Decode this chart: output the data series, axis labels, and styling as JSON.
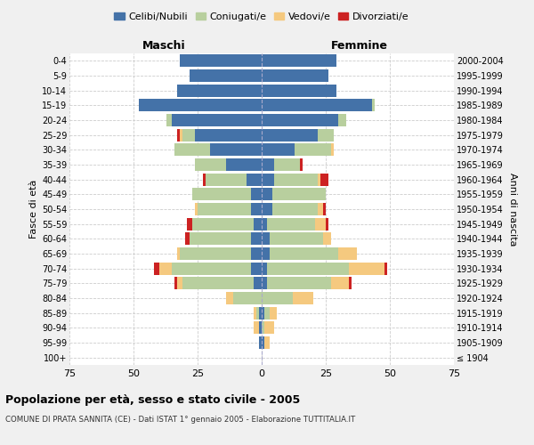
{
  "age_groups": [
    "100+",
    "95-99",
    "90-94",
    "85-89",
    "80-84",
    "75-79",
    "70-74",
    "65-69",
    "60-64",
    "55-59",
    "50-54",
    "45-49",
    "40-44",
    "35-39",
    "30-34",
    "25-29",
    "20-24",
    "15-19",
    "10-14",
    "5-9",
    "0-4"
  ],
  "birth_years": [
    "≤ 1904",
    "1905-1909",
    "1910-1914",
    "1915-1919",
    "1920-1924",
    "1925-1929",
    "1930-1934",
    "1935-1939",
    "1940-1944",
    "1945-1949",
    "1950-1954",
    "1955-1959",
    "1960-1964",
    "1965-1969",
    "1970-1974",
    "1975-1979",
    "1980-1984",
    "1985-1989",
    "1990-1994",
    "1995-1999",
    "2000-2004"
  ],
  "maschi": {
    "celibe": [
      0,
      1,
      1,
      1,
      0,
      3,
      4,
      4,
      4,
      3,
      4,
      4,
      6,
      14,
      20,
      26,
      35,
      48,
      33,
      28,
      32
    ],
    "coniugato": [
      0,
      0,
      0,
      1,
      11,
      28,
      31,
      28,
      24,
      24,
      21,
      23,
      16,
      12,
      14,
      5,
      2,
      0,
      0,
      0,
      0
    ],
    "vedovo": [
      0,
      0,
      2,
      1,
      3,
      2,
      5,
      1,
      0,
      0,
      1,
      0,
      0,
      0,
      0,
      1,
      0,
      0,
      0,
      0,
      0
    ],
    "divorziato": [
      0,
      0,
      0,
      0,
      0,
      1,
      2,
      0,
      2,
      2,
      0,
      0,
      1,
      0,
      0,
      1,
      0,
      0,
      0,
      0,
      0
    ]
  },
  "femmine": {
    "nubile": [
      0,
      1,
      0,
      1,
      0,
      2,
      2,
      3,
      3,
      2,
      4,
      4,
      5,
      5,
      13,
      22,
      30,
      43,
      29,
      26,
      29
    ],
    "coniugata": [
      0,
      0,
      1,
      2,
      12,
      25,
      32,
      27,
      21,
      19,
      18,
      21,
      17,
      10,
      14,
      6,
      3,
      1,
      0,
      0,
      0
    ],
    "vedova": [
      0,
      2,
      4,
      3,
      8,
      7,
      14,
      7,
      3,
      4,
      2,
      0,
      1,
      0,
      1,
      0,
      0,
      0,
      0,
      0,
      0
    ],
    "divorziata": [
      0,
      0,
      0,
      0,
      0,
      1,
      1,
      0,
      0,
      1,
      1,
      0,
      3,
      1,
      0,
      0,
      0,
      0,
      0,
      0,
      0
    ]
  },
  "colors": {
    "celibe": "#4472a8",
    "coniugato": "#b8cf9e",
    "vedovo": "#f5c97f",
    "divorziato": "#cc2222"
  },
  "legend_labels": [
    "Celibi/Nubili",
    "Coniugati/e",
    "Vedovi/e",
    "Divorziati/e"
  ],
  "xlim": 75,
  "title_main": "Popolazione per età, sesso e stato civile - 2005",
  "title_sub": "COMUNE DI PRATA SANNITA (CE) - Dati ISTAT 1° gennaio 2005 - Elaborazione TUTTITALIA.IT",
  "ylabel_left": "Fasce di età",
  "ylabel_right": "Anni di nascita",
  "xlabel_maschi": "Maschi",
  "xlabel_femmine": "Femmine",
  "bg_color": "#f0f0f0",
  "plot_bg": "#ffffff"
}
